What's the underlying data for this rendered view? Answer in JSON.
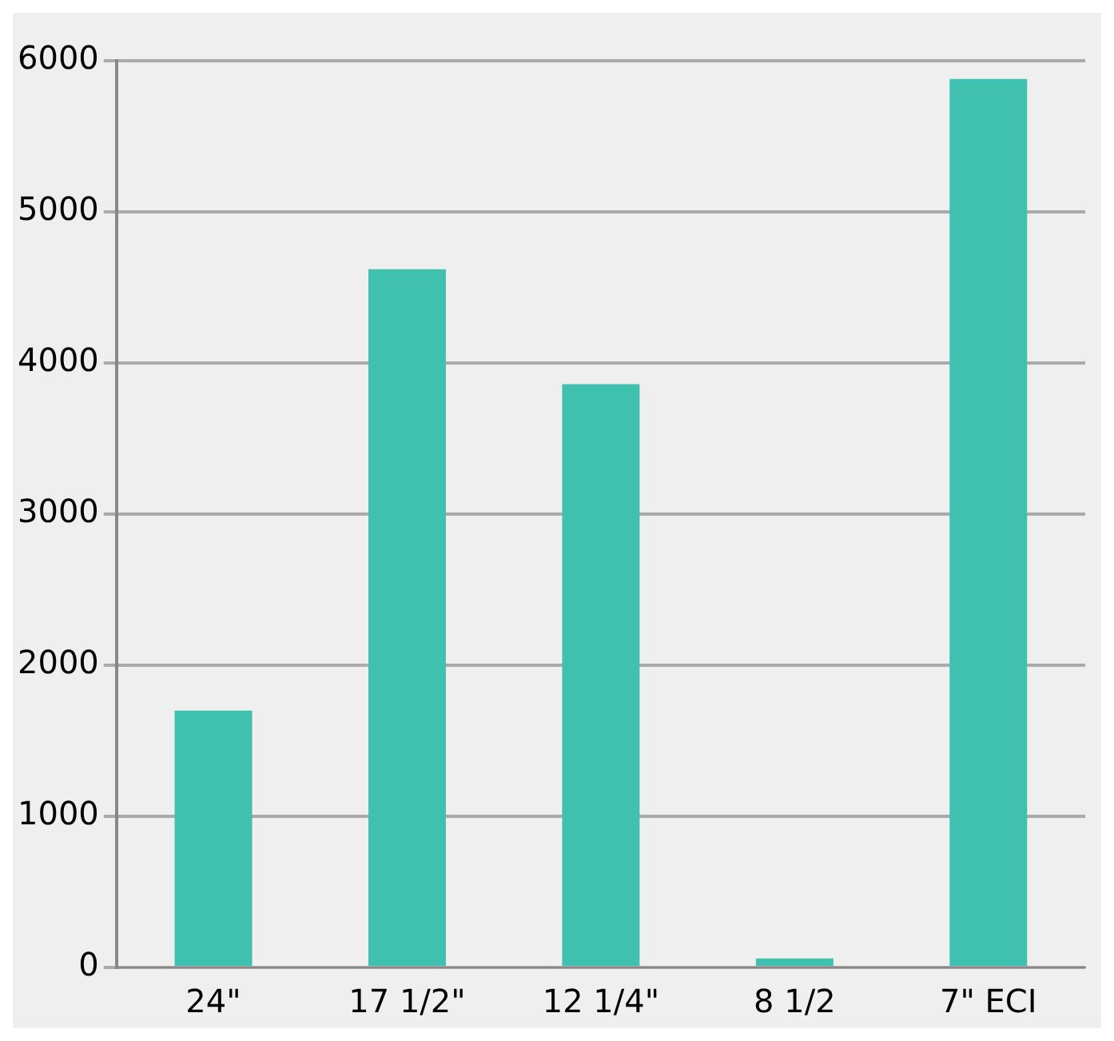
{
  "chart_data": {
    "type": "bar",
    "categories": [
      "24\"",
      "17 1/2\"",
      "12 1/4\"",
      "8 1/2",
      "7\" ECI"
    ],
    "values": [
      1700,
      4620,
      3860,
      60,
      5880
    ],
    "color": "#40c0ae",
    "ylim": [
      0,
      6000
    ],
    "yticks": [
      0,
      1000,
      2000,
      3000,
      4000,
      5000,
      6000
    ],
    "grid": "y",
    "legend": false
  }
}
